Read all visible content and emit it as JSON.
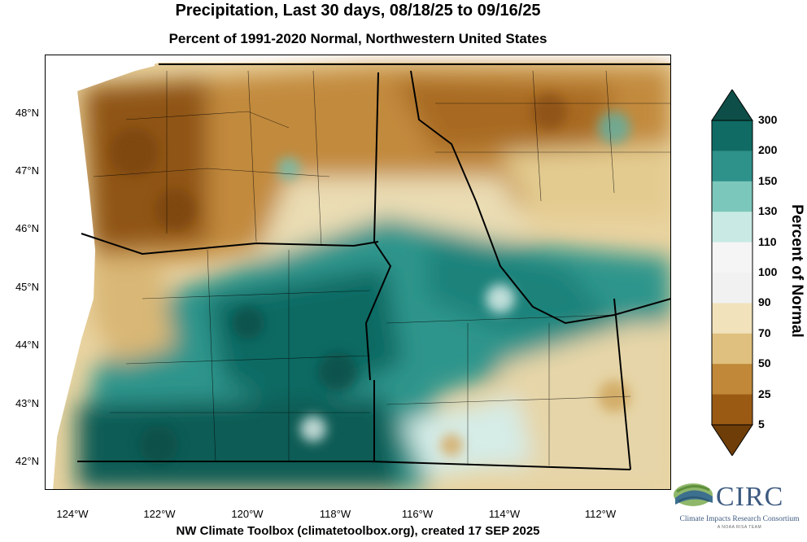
{
  "title": "Precipitation, Last 30 days, 08/18/25 to 09/16/25",
  "subtitle": "Percent of 1991-2020 Normal, Northwestern United States",
  "credit": "NW Climate Toolbox (climatetoolbox.org), created 17 SEP 2025",
  "lat_labels": [
    "48°N",
    "47°N",
    "46°N",
    "45°N",
    "44°N",
    "43°N",
    "42°N"
  ],
  "lon_labels": [
    "124°W",
    "122°W",
    "120°W",
    "118°W",
    "116°W",
    "114°W",
    "112°W"
  ],
  "colorbar": {
    "title": "Percent of Normal",
    "labels": [
      "300",
      "200",
      "150",
      "130",
      "110",
      "100",
      "90",
      "70",
      "50",
      "25",
      "5"
    ],
    "colors": [
      "#0d4f48",
      "#0f6b64",
      "#2e918a",
      "#7cc7bb",
      "#c9eae4",
      "#f5f5f5",
      "#f1f1f1",
      "#f1e2bc",
      "#dfc07e",
      "#c08838",
      "#9a5a13",
      "#6e3d08"
    ]
  },
  "logo": {
    "name": "CIRC",
    "subtitle": "Climate Impacts Research Consortium",
    "tagline": "A NOAA RISA TEAM"
  }
}
